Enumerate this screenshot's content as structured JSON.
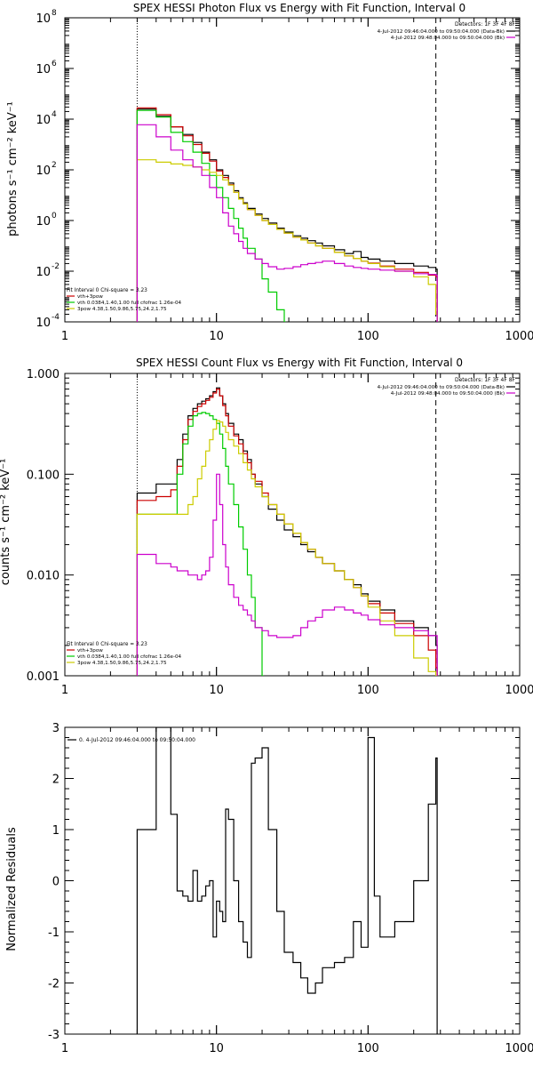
{
  "charts": [
    {
      "type": "line",
      "title": "SPEX HESSI Photon Flux vs Energy with Fit Function, Interval 0",
      "ylabel": "photons s⁻¹ cm⁻² keV⁻¹",
      "xlim": [
        1,
        1000
      ],
      "ylim": [
        0.0001,
        100000000
      ],
      "xscale": "log",
      "yscale": "log",
      "xticks": [
        "1",
        "10",
        "100",
        "1000"
      ],
      "yticks": [
        {
          "base": "10",
          "exp": "-4",
          "v": 0.0001
        },
        {
          "base": "10",
          "exp": "-2",
          "v": 0.01
        },
        {
          "base": "10",
          "exp": "0",
          "v": 1
        },
        {
          "base": "10",
          "exp": "2",
          "v": 100
        },
        {
          "base": "10",
          "exp": "4",
          "v": 10000
        },
        {
          "base": "10",
          "exp": "6",
          "v": 1000000
        },
        {
          "base": "10",
          "exp": "8",
          "v": 100000000
        }
      ],
      "vlines": [
        {
          "x": 3,
          "style": "dotted"
        },
        {
          "x": 280,
          "style": "dashed"
        }
      ],
      "legend_top": {
        "detectors": "Detectors: 1F 3F 4F 8F",
        "lines": [
          {
            "text": "4-Jul-2012 09:46:04.000 to 09:50:04.000 (Data-Bk)",
            "color": "#000000"
          },
          {
            "text": "4-Jul-2012 09:48:04.000 to 09:50:04.000 (Bk)",
            "color": "#cc00cc"
          }
        ]
      },
      "legend_bottom": {
        "header": "Fit Interval 0   Chi-square = 3.23",
        "lines": [
          {
            "text": "vth+3pow",
            "color": "#cc0000"
          },
          {
            "text": "vth 0.0384,1.40,1.00  full cfofrac 1.26e-04",
            "color": "#00cc00"
          },
          {
            "text": "3pow 4.38,1.50,9.86,5.75,24.2,1.75",
            "color": "#cccc00"
          }
        ]
      },
      "series": [
        {
          "name": "4-Jul-2012 09:46:04.000 to 09:50:04.000 (Data-Bk)",
          "color": "#000000",
          "x": [
            3,
            4,
            5,
            6,
            7,
            8,
            9,
            10,
            11,
            12,
            13,
            14,
            15,
            16,
            18,
            20,
            22,
            25,
            28,
            32,
            36,
            40,
            45,
            50,
            60,
            70,
            80,
            90,
            100,
            120,
            150,
            200,
            250,
            280
          ],
          "y": [
            25000,
            13000,
            5000,
            2500,
            1200,
            500,
            250,
            100,
            60,
            30,
            15,
            8,
            5,
            3,
            1.8,
            1.2,
            0.8,
            0.5,
            0.35,
            0.25,
            0.2,
            0.16,
            0.13,
            0.1,
            0.07,
            0.05,
            0.06,
            0.035,
            0.03,
            0.025,
            0.02,
            0.016,
            0.014,
            0.012
          ]
        },
        {
          "name": "vth+3pow",
          "color": "#cc0000",
          "x": [
            3,
            4,
            5,
            6,
            7,
            8,
            9,
            10,
            11,
            12,
            13,
            14,
            15,
            16,
            18,
            20,
            22,
            25,
            28,
            32,
            36,
            40,
            45,
            50,
            60,
            70,
            80,
            90,
            100,
            120,
            150,
            200,
            250,
            280
          ],
          "y": [
            28000,
            15000,
            5000,
            2200,
            1000,
            450,
            220,
            90,
            50,
            26,
            13,
            7,
            4.5,
            2.7,
            1.6,
            1.0,
            0.7,
            0.45,
            0.32,
            0.22,
            0.17,
            0.13,
            0.1,
            0.08,
            0.055,
            0.04,
            0.032,
            0.025,
            0.021,
            0.016,
            0.012,
            0.009,
            0.007,
            0.006
          ]
        },
        {
          "name": "vth 0.0384,1.40,1.00  full cfofrac 1.26e-04",
          "color": "#00cc00",
          "x": [
            3,
            4,
            5,
            6,
            7,
            8,
            9,
            10,
            11,
            12,
            13,
            14,
            15,
            16,
            18,
            20,
            22,
            25,
            28
          ],
          "y": [
            22000,
            12000,
            3000,
            1300,
            500,
            180,
            60,
            20,
            8,
            3,
            1.2,
            0.5,
            0.2,
            0.08,
            0.03,
            0.005,
            0.0015,
            0.0003,
            0.0001
          ]
        },
        {
          "name": "3pow 4.38,1.50,9.86,5.75,24.2,1.75",
          "color": "#cccc00",
          "x": [
            3,
            4,
            5,
            6,
            7,
            8,
            9,
            10,
            11,
            12,
            13,
            14,
            15,
            16,
            18,
            20,
            22,
            25,
            28,
            32,
            36,
            40,
            45,
            50,
            60,
            70,
            80,
            90,
            100,
            120,
            150,
            200,
            250,
            280
          ],
          "y": [
            250,
            200,
            170,
            150,
            130,
            100,
            80,
            60,
            40,
            25,
            13,
            7,
            4.5,
            2.7,
            1.6,
            1.0,
            0.7,
            0.45,
            0.32,
            0.22,
            0.17,
            0.13,
            0.1,
            0.08,
            0.055,
            0.04,
            0.032,
            0.025,
            0.02,
            0.015,
            0.01,
            0.006,
            0.003,
            0.0002
          ]
        },
        {
          "name": "4-Jul-2012 09:48:04.000 to 09:50:04.000 (Bk)",
          "color": "#cc00cc",
          "x": [
            3,
            4,
            5,
            6,
            7,
            8,
            9,
            10,
            11,
            12,
            13,
            14,
            15,
            16,
            18,
            20,
            22,
            25,
            28,
            32,
            36,
            40,
            45,
            50,
            60,
            70,
            80,
            90,
            100,
            120,
            150,
            200,
            250,
            280
          ],
          "y": [
            6000,
            2000,
            600,
            250,
            130,
            60,
            20,
            8,
            2,
            0.6,
            0.3,
            0.15,
            0.08,
            0.05,
            0.03,
            0.02,
            0.015,
            0.012,
            0.013,
            0.015,
            0.018,
            0.02,
            0.022,
            0.025,
            0.02,
            0.016,
            0.014,
            0.013,
            0.012,
            0.011,
            0.01,
            0.008,
            0.0075,
            0.007
          ]
        }
      ]
    },
    {
      "type": "line",
      "title": "SPEX HESSI Count Flux vs Energy with Fit Function, Interval 0",
      "ylabel": "counts s⁻¹ cm⁻² keV⁻¹",
      "xlim": [
        1,
        1000
      ],
      "ylim": [
        0.001,
        1
      ],
      "xscale": "log",
      "yscale": "log",
      "xticks": [
        "1",
        "10",
        "100",
        "1000"
      ],
      "yticks": [
        {
          "label": "0.001",
          "v": 0.001
        },
        {
          "label": "0.010",
          "v": 0.01
        },
        {
          "label": "0.100",
          "v": 0.1
        },
        {
          "label": "1.000",
          "v": 1
        }
      ],
      "vlines": [
        {
          "x": 3,
          "style": "dotted"
        },
        {
          "x": 280,
          "style": "dashed"
        }
      ],
      "legend_top": {
        "detectors": "Detectors: 1F 3F 4F 8F",
        "lines": [
          {
            "text": "4-Jul-2012 09:46:04.000 to 09:50:04.000 (Data-Bk)",
            "color": "#000000"
          },
          {
            "text": "4-Jul-2012 09:48:04.000 to 09:50:04.000 (Bk)",
            "color": "#cc00cc"
          }
        ]
      },
      "legend_bottom": {
        "header": "Fit Interval 0   Chi-square = 3.23",
        "lines": [
          {
            "text": "vth+3pow",
            "color": "#cc0000"
          },
          {
            "text": "vth 0.0384,1.40,1.00  full cfofrac 1.26e-04",
            "color": "#00cc00"
          },
          {
            "text": "3pow 4.38,1.50,9.86,5.75,24.2,1.75",
            "color": "#cccc00"
          }
        ]
      },
      "series": [
        {
          "name": "4-Jul-2012 09:46:04.000 to 09:50:04.000 (Data-Bk)",
          "color": "#000000",
          "x": [
            3,
            4,
            5,
            5.5,
            6,
            6.5,
            7,
            7.5,
            8,
            8.5,
            9,
            9.5,
            10,
            10.5,
            11,
            11.5,
            12,
            13,
            14,
            15,
            16,
            17,
            18,
            20,
            22,
            25,
            28,
            32,
            36,
            40,
            45,
            50,
            60,
            70,
            80,
            90,
            100,
            120,
            150,
            200,
            250,
            280
          ],
          "y": [
            0.065,
            0.08,
            0.08,
            0.14,
            0.25,
            0.38,
            0.45,
            0.5,
            0.53,
            0.56,
            0.6,
            0.66,
            0.72,
            0.6,
            0.5,
            0.4,
            0.32,
            0.25,
            0.22,
            0.17,
            0.14,
            0.1,
            0.08,
            0.06,
            0.045,
            0.035,
            0.028,
            0.024,
            0.02,
            0.017,
            0.015,
            0.013,
            0.011,
            0.009,
            0.008,
            0.0065,
            0.0055,
            0.0045,
            0.0035,
            0.003,
            0.0025,
            0.002
          ]
        },
        {
          "name": "vth+3pow",
          "color": "#cc0000",
          "x": [
            3,
            4,
            5,
            5.5,
            6,
            6.5,
            7,
            7.5,
            8,
            8.5,
            9,
            9.5,
            10,
            10.5,
            11,
            11.5,
            12,
            13,
            14,
            15,
            16,
            17,
            18,
            20,
            22,
            25,
            28,
            32,
            36,
            40,
            45,
            50,
            60,
            70,
            80,
            90,
            100,
            120,
            150,
            200,
            250,
            280
          ],
          "y": [
            0.055,
            0.06,
            0.07,
            0.12,
            0.22,
            0.35,
            0.42,
            0.47,
            0.5,
            0.54,
            0.58,
            0.64,
            0.7,
            0.6,
            0.48,
            0.38,
            0.3,
            0.24,
            0.2,
            0.16,
            0.13,
            0.1,
            0.085,
            0.065,
            0.05,
            0.04,
            0.032,
            0.026,
            0.021,
            0.018,
            0.015,
            0.013,
            0.011,
            0.009,
            0.0075,
            0.0062,
            0.0052,
            0.0042,
            0.0033,
            0.0025,
            0.0018,
            0.0012
          ]
        },
        {
          "name": "vth 0.0384,1.40,1.00  full cfofrac 1.26e-04",
          "color": "#00cc00",
          "x": [
            3,
            4,
            5,
            5.5,
            6,
            6.5,
            7,
            7.5,
            8,
            8.5,
            9,
            9.5,
            10,
            10.5,
            11,
            11.5,
            12,
            13,
            14,
            15,
            16,
            17,
            18,
            20
          ],
          "y": [
            0.04,
            0.04,
            0.04,
            0.1,
            0.2,
            0.3,
            0.38,
            0.4,
            0.41,
            0.4,
            0.38,
            0.35,
            0.32,
            0.25,
            0.18,
            0.12,
            0.08,
            0.05,
            0.03,
            0.018,
            0.01,
            0.006,
            0.003,
            0.001
          ]
        },
        {
          "name": "3pow 4.38,1.50,9.86,5.75,24.2,1.75",
          "color": "#cccc00",
          "x": [
            3,
            4,
            5,
            5.5,
            6,
            6.5,
            7,
            7.5,
            8,
            8.5,
            9,
            9.5,
            10,
            10.5,
            11,
            11.5,
            12,
            13,
            14,
            15,
            16,
            17,
            18,
            20,
            22,
            25,
            28,
            32,
            36,
            40,
            45,
            50,
            60,
            70,
            80,
            90,
            100,
            120,
            150,
            200,
            250,
            280
          ],
          "y": [
            0.04,
            0.04,
            0.04,
            0.04,
            0.04,
            0.05,
            0.06,
            0.09,
            0.12,
            0.17,
            0.22,
            0.28,
            0.34,
            0.33,
            0.3,
            0.26,
            0.22,
            0.19,
            0.16,
            0.13,
            0.11,
            0.09,
            0.075,
            0.06,
            0.05,
            0.04,
            0.032,
            0.026,
            0.021,
            0.018,
            0.015,
            0.013,
            0.011,
            0.009,
            0.0075,
            0.0062,
            0.0048,
            0.0035,
            0.0025,
            0.0015,
            0.0011,
            0.0008
          ]
        },
        {
          "name": "4-Jul-2012 09:48:04.000 to 09:50:04.000 (Bk)",
          "color": "#cc00cc",
          "x": [
            3,
            4,
            5,
            5.5,
            6,
            6.5,
            7,
            7.5,
            8,
            8.5,
            9,
            9.5,
            10,
            10.5,
            11,
            11.5,
            12,
            13,
            14,
            15,
            16,
            17,
            18,
            20,
            22,
            25,
            28,
            32,
            36,
            40,
            45,
            50,
            60,
            70,
            80,
            90,
            100,
            120,
            150,
            200,
            250,
            280
          ],
          "y": [
            0.016,
            0.013,
            0.012,
            0.011,
            0.011,
            0.01,
            0.01,
            0.009,
            0.01,
            0.011,
            0.015,
            0.035,
            0.1,
            0.05,
            0.02,
            0.012,
            0.008,
            0.006,
            0.005,
            0.0045,
            0.004,
            0.0035,
            0.003,
            0.0028,
            0.0025,
            0.0024,
            0.0024,
            0.0025,
            0.003,
            0.0035,
            0.0038,
            0.0045,
            0.0048,
            0.0045,
            0.0042,
            0.004,
            0.0036,
            0.0032,
            0.003,
            0.0028,
            0.0025,
            0.0025
          ]
        }
      ]
    },
    {
      "type": "line",
      "title": "",
      "ylabel": "Normalized Residuals",
      "xlim": [
        1,
        1000
      ],
      "ylim": [
        -3,
        3
      ],
      "xscale": "log",
      "yscale": "linear",
      "xticks": [
        "1",
        "10",
        "100",
        "1000"
      ],
      "yticks": [
        {
          "label": "-3",
          "v": -3
        },
        {
          "label": "-2",
          "v": -2
        },
        {
          "label": "-1",
          "v": -1
        },
        {
          "label": "0",
          "v": 0
        },
        {
          "label": "1",
          "v": 1
        },
        {
          "label": "2",
          "v": 2
        },
        {
          "label": "3",
          "v": 3
        }
      ],
      "legend_top_left": {
        "label": "0.  4-Jul-2012 09:46:04.000 to 09:50:04.000"
      },
      "series": [
        {
          "name": "0.  4-Jul-2012 09:46:04.000 to 09:50:04.000",
          "color": "#000000",
          "x": [
            3,
            4,
            5,
            5.5,
            6,
            6.5,
            7,
            7.5,
            8,
            8.5,
            9,
            9.5,
            10,
            10.5,
            11,
            11.5,
            12,
            13,
            14,
            15,
            16,
            17,
            18,
            20,
            22,
            25,
            28,
            32,
            36,
            40,
            45,
            50,
            60,
            70,
            80,
            90,
            100,
            110,
            120,
            150,
            200,
            250,
            280
          ],
          "y": [
            1.0,
            3.0,
            1.3,
            -0.2,
            -0.3,
            -0.4,
            0.2,
            -0.4,
            -0.3,
            -0.1,
            0.0,
            -1.1,
            -0.4,
            -0.6,
            -0.8,
            1.4,
            1.2,
            0.0,
            -0.8,
            -1.2,
            -1.5,
            2.3,
            2.4,
            2.6,
            1.0,
            -0.6,
            -1.4,
            -1.6,
            -1.9,
            -2.2,
            -2.0,
            -1.7,
            -1.6,
            -1.5,
            -0.8,
            -1.3,
            2.8,
            -0.3,
            -1.1,
            -0.8,
            0.0,
            1.5,
            2.4
          ]
        }
      ]
    }
  ]
}
